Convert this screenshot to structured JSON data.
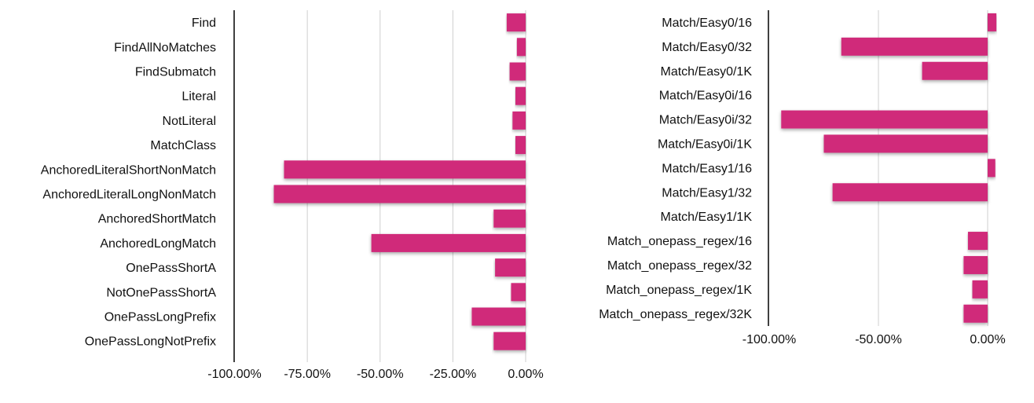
{
  "colors": {
    "bar": "#d0297a",
    "grid": "#cfcfcf",
    "axis": "#000000"
  },
  "chart_data": [
    {
      "type": "bar",
      "orientation": "horizontal",
      "categories": [
        "Find",
        "FindAllNoMatches",
        "FindSubmatch",
        "Literal",
        "NotLiteral",
        "MatchClass",
        "AnchoredLiteralShortNonMatch",
        "AnchoredLiteralLongNonMatch",
        "AnchoredShortMatch",
        "AnchoredLongMatch",
        "OnePassShortA",
        "NotOnePassShortA",
        "OnePassLongPrefix",
        "OnePassLongNotPrefix"
      ],
      "values": [
        -6.5,
        -3,
        -5.5,
        -3.5,
        -4.5,
        -3.5,
        -83,
        -86.5,
        -11,
        -53,
        -10.5,
        -5,
        -18.5,
        -11
      ],
      "xlim": [
        -100,
        0
      ],
      "ticks": [
        -100,
        -75,
        -50,
        -25,
        0
      ],
      "tick_labels": [
        "-100.00%",
        "-75.00%",
        "-50.00%",
        "-25.00%",
        "0.00%"
      ],
      "grid": true,
      "title": "",
      "xlabel": "",
      "ylabel": ""
    },
    {
      "type": "bar",
      "orientation": "horizontal",
      "categories": [
        "Match/Easy0/16",
        "Match/Easy0/32",
        "Match/Easy0/1K",
        "Match/Easy0i/16",
        "Match/Easy0i/32",
        "Match/Easy0i/1K",
        "Match/Easy1/16",
        "Match/Easy1/32",
        "Match/Easy1/1K",
        "Match_onepass_regex/16",
        "Match_onepass_regex/32",
        "Match_onepass_regex/1K",
        "Match_onepass_regex/32K"
      ],
      "values": [
        4,
        -67,
        -30,
        0,
        -94.5,
        -75,
        3.5,
        -71,
        0,
        -9,
        -11,
        -7,
        -11
      ],
      "xlim": [
        -100,
        0
      ],
      "ticks": [
        -100,
        -50,
        0
      ],
      "tick_labels": [
        "-100.00%",
        "-50.00%",
        "0.00%"
      ],
      "grid": true,
      "title": "",
      "xlabel": "",
      "ylabel": ""
    }
  ]
}
